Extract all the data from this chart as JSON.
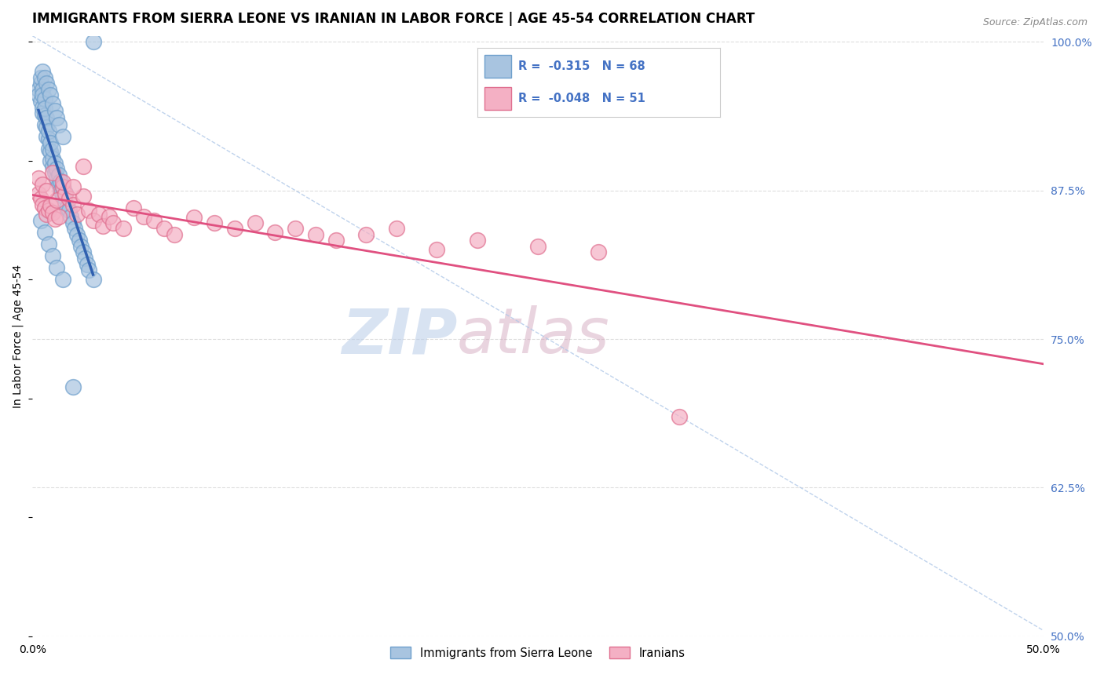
{
  "title": "IMMIGRANTS FROM SIERRA LEONE VS IRANIAN IN LABOR FORCE | AGE 45-54 CORRELATION CHART",
  "source": "Source: ZipAtlas.com",
  "ylabel": "In Labor Force | Age 45-54",
  "x_min": 0.0,
  "x_max": 0.5,
  "y_min": 0.5,
  "y_max": 1.005,
  "y_ticks": [
    0.5,
    0.625,
    0.75,
    0.875,
    1.0
  ],
  "y_tick_labels_right": [
    "50.0%",
    "62.5%",
    "75.0%",
    "87.5%",
    "100.0%"
  ],
  "sierra_leone_color": "#a8c4e0",
  "sierra_leone_edge": "#6fa0cc",
  "iranians_color": "#f4b0c4",
  "iranians_edge": "#e07090",
  "trend_sierra_color": "#3060b0",
  "trend_iranian_color": "#e05080",
  "dashed_line_color": "#b0c8e8",
  "legend_R_sierra": "-0.315",
  "legend_N_sierra": "68",
  "legend_R_iranian": "-0.048",
  "legend_N_iranian": "51",
  "watermark_zip": "ZIP",
  "watermark_atlas": "atlas",
  "background_color": "#ffffff",
  "grid_color": "#dddddd",
  "title_fontsize": 12,
  "axis_label_fontsize": 10,
  "tick_fontsize": 10,
  "sierra_leone_x": [
    0.003,
    0.003,
    0.004,
    0.004,
    0.004,
    0.005,
    0.005,
    0.005,
    0.005,
    0.006,
    0.006,
    0.006,
    0.006,
    0.007,
    0.007,
    0.007,
    0.008,
    0.008,
    0.008,
    0.009,
    0.009,
    0.009,
    0.01,
    0.01,
    0.01,
    0.011,
    0.011,
    0.012,
    0.012,
    0.013,
    0.013,
    0.014,
    0.014,
    0.015,
    0.015,
    0.016,
    0.016,
    0.017,
    0.018,
    0.019,
    0.02,
    0.021,
    0.022,
    0.023,
    0.024,
    0.025,
    0.026,
    0.027,
    0.028,
    0.03,
    0.005,
    0.006,
    0.007,
    0.008,
    0.009,
    0.01,
    0.011,
    0.012,
    0.013,
    0.015,
    0.004,
    0.006,
    0.008,
    0.01,
    0.012,
    0.015,
    0.02,
    0.03
  ],
  "sierra_leone_y": [
    0.96,
    0.955,
    0.965,
    0.95,
    0.97,
    0.945,
    0.94,
    0.96,
    0.955,
    0.93,
    0.938,
    0.952,
    0.944,
    0.92,
    0.928,
    0.936,
    0.91,
    0.918,
    0.925,
    0.9,
    0.908,
    0.915,
    0.895,
    0.902,
    0.91,
    0.89,
    0.898,
    0.885,
    0.893,
    0.88,
    0.888,
    0.875,
    0.883,
    0.87,
    0.878,
    0.865,
    0.873,
    0.86,
    0.858,
    0.853,
    0.848,
    0.843,
    0.838,
    0.833,
    0.828,
    0.823,
    0.818,
    0.813,
    0.808,
    0.8,
    0.975,
    0.97,
    0.965,
    0.96,
    0.955,
    0.948,
    0.942,
    0.936,
    0.93,
    0.92,
    0.85,
    0.84,
    0.83,
    0.82,
    0.81,
    0.8,
    0.71,
    1.0
  ],
  "iranians_x": [
    0.003,
    0.004,
    0.005,
    0.006,
    0.007,
    0.008,
    0.009,
    0.01,
    0.011,
    0.012,
    0.013,
    0.015,
    0.016,
    0.018,
    0.02,
    0.022,
    0.025,
    0.028,
    0.03,
    0.033,
    0.035,
    0.038,
    0.04,
    0.045,
    0.05,
    0.055,
    0.06,
    0.065,
    0.07,
    0.08,
    0.09,
    0.1,
    0.11,
    0.12,
    0.13,
    0.14,
    0.15,
    0.165,
    0.18,
    0.2,
    0.22,
    0.25,
    0.28,
    0.32,
    0.003,
    0.005,
    0.007,
    0.01,
    0.015,
    0.02,
    0.025
  ],
  "iranians_y": [
    0.872,
    0.868,
    0.863,
    0.86,
    0.855,
    0.858,
    0.862,
    0.856,
    0.851,
    0.867,
    0.853,
    0.878,
    0.872,
    0.868,
    0.863,
    0.855,
    0.87,
    0.858,
    0.85,
    0.855,
    0.845,
    0.853,
    0.848,
    0.843,
    0.86,
    0.853,
    0.85,
    0.843,
    0.838,
    0.852,
    0.848,
    0.843,
    0.848,
    0.84,
    0.843,
    0.838,
    0.833,
    0.838,
    0.843,
    0.825,
    0.833,
    0.828,
    0.823,
    0.685,
    0.885,
    0.88,
    0.875,
    0.89,
    0.882,
    0.878,
    0.895
  ]
}
